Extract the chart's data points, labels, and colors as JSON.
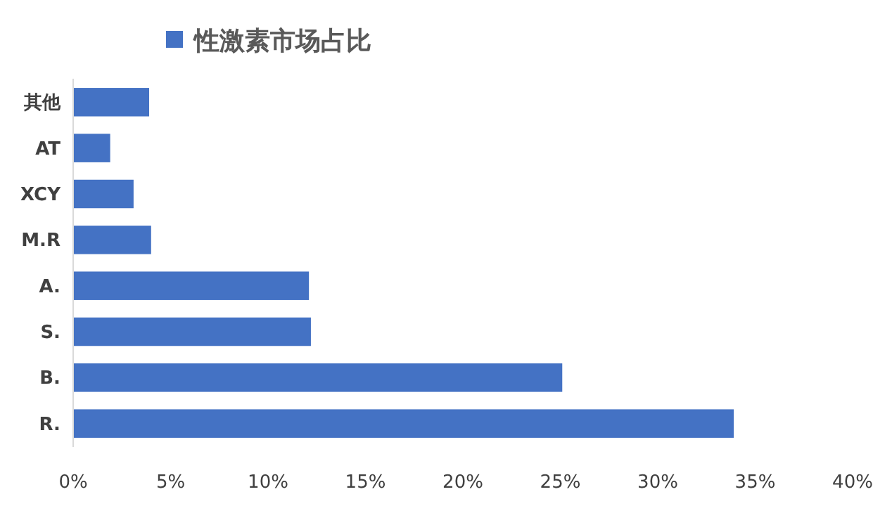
{
  "chart_data": {
    "type": "bar",
    "orientation": "horizontal",
    "categories": [
      "其他",
      "AT",
      "XCY",
      "M.R",
      "A.",
      "S.",
      "B.",
      "R."
    ],
    "series": [
      {
        "name": "性激素市场占比",
        "color": "#4472c4",
        "values": [
          3.9,
          1.9,
          3.1,
          4.0,
          12.1,
          12.2,
          25.1,
          33.9
        ]
      }
    ],
    "xlim": [
      0,
      40
    ],
    "xticks": [
      {
        "value": 0,
        "label": "0%"
      },
      {
        "value": 5,
        "label": "5%"
      },
      {
        "value": 10,
        "label": "10%"
      },
      {
        "value": 15,
        "label": "15%"
      },
      {
        "value": 20,
        "label": "20%"
      },
      {
        "value": 25,
        "label": "25%"
      },
      {
        "value": 30,
        "label": "30%"
      },
      {
        "value": 35,
        "label": "35%"
      },
      {
        "value": 40,
        "label": "40%"
      }
    ],
    "legend": "top",
    "grid": false
  }
}
